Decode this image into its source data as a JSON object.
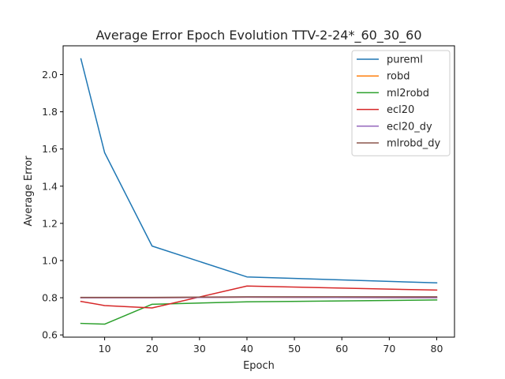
{
  "chart_data": {
    "type": "line",
    "title": "Average Error Epoch Evolution TTV-2-24*_60_30_60",
    "xlabel": "Epoch",
    "ylabel": "Average Error",
    "x": [
      5,
      10,
      20,
      40,
      80
    ],
    "xlim": [
      1.25,
      83.75
    ],
    "ylim": [
      0.588,
      2.155
    ],
    "xticks": [
      10,
      20,
      30,
      40,
      50,
      60,
      70,
      80
    ],
    "xtick_labels": [
      "10",
      "20",
      "30",
      "40",
      "50",
      "60",
      "70",
      "80"
    ],
    "yticks": [
      0.6,
      0.8,
      1.0,
      1.2,
      1.4,
      1.6,
      1.8,
      2.0
    ],
    "ytick_labels": [
      "0.6",
      "0.8",
      "1.0",
      "1.2",
      "1.4",
      "1.6",
      "1.8",
      "2.0"
    ],
    "grid": false,
    "legend_position": "top-right",
    "series": [
      {
        "name": "pureml",
        "color": "#1f77b4",
        "values": [
          2.085,
          1.58,
          1.078,
          0.912,
          0.88
        ]
      },
      {
        "name": "robd",
        "color": "#ff7f0e",
        "values": [
          0.8,
          0.8,
          0.8,
          0.803,
          0.8
        ]
      },
      {
        "name": "ml2robd",
        "color": "#2ca02c",
        "values": [
          0.662,
          0.658,
          0.765,
          0.778,
          0.788
        ]
      },
      {
        "name": "ecl20",
        "color": "#d62728",
        "values": [
          0.78,
          0.758,
          0.745,
          0.863,
          0.841
        ]
      },
      {
        "name": "ecl20_dy",
        "color": "#9467bd",
        "values": [
          0.8,
          0.8,
          0.8,
          0.803,
          0.8
        ]
      },
      {
        "name": "mlrobd_dy",
        "color": "#8c564b",
        "values": [
          0.802,
          0.802,
          0.802,
          0.805,
          0.805
        ]
      }
    ]
  }
}
